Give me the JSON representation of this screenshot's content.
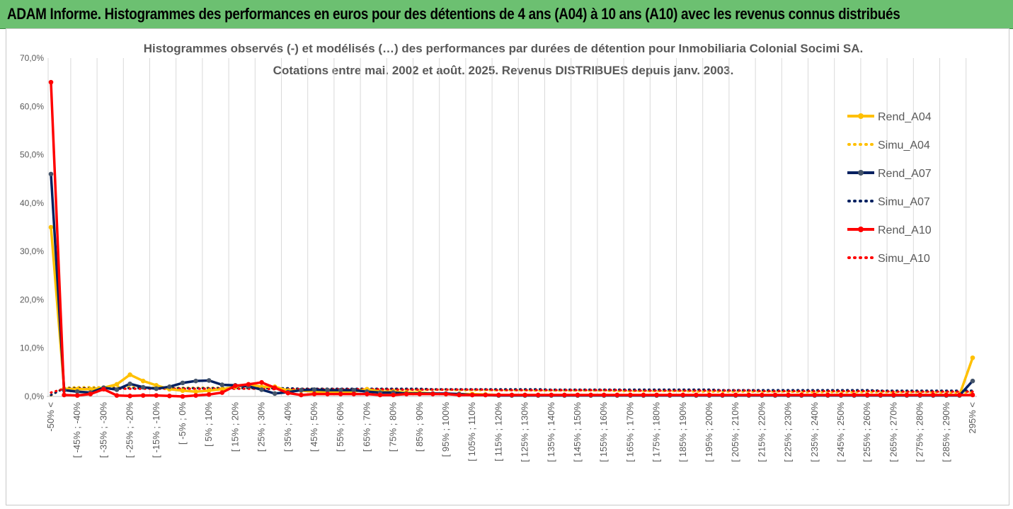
{
  "banner": {
    "title": "ADAM Informe. Histogrammes des performances en euros pour des détentions de 4 ans (A04) à 10 ans (A10) avec les revenus connus distribués"
  },
  "colors": {
    "banner_bg": "#6cc071",
    "a04": "#ffc000",
    "a07": "#002060",
    "a10": "#ff0000",
    "a07_marker": "#44546a",
    "grid": "#d9d9d9",
    "text": "#595959"
  },
  "chart_data": {
    "type": "line",
    "title": "Histogrammes observés (-) et modélisés (…) des performances par durées de détention pour Inmobiliaria Colonial Socimi SA.",
    "subtitle": "Cotations entre mai. 2002 et août. 2025. Revenus DISTRIBUES depuis janv. 2003.",
    "xlabel": "",
    "ylabel": "",
    "ylim": [
      0,
      70
    ],
    "yticks": [
      "0,0%",
      "10,0%",
      "20,0%",
      "30,0%",
      "40,0%",
      "50,0%",
      "60,0%",
      "70,0%"
    ],
    "grid": "vertical",
    "legend_position": "right",
    "categories": [
      "-50% <",
      "[ -50% ; -45%",
      "[ -45% ; -40%",
      "[ -40% ; -35%",
      "[ -35% ; -30%",
      "[ -30% ; -25%",
      "[ -25% ; -20%",
      "[ -20% ; -15%",
      "[ -15% ; -10%",
      "[ -10% ; -5%",
      "[ -5% ; 0%",
      "[ 0% ; 5%",
      "[ 5% ; 10%",
      "[ 10% ; 15%",
      "[ 15% ; 20%",
      "[ 20% ; 25%",
      "[ 25% ; 30%",
      "[ 30% ; 35%",
      "[ 35% ; 40%",
      "[ 40% ; 45%",
      "[ 45% ; 50%",
      "[ 50% ; 55%",
      "[ 55% ; 60%",
      "[ 60% ; 65%",
      "[ 65% ; 70%",
      "[ 70% ; 75%",
      "[ 75% ; 80%",
      "[ 80% ; 85%",
      "[ 85% ; 90%",
      "[ 90% ; 95%",
      "[ 95% ; 100%",
      "[ 100% ; 105%",
      "[ 105% ; 110%",
      "[ 110% ; 115%",
      "[ 115% ; 120%",
      "[ 120% ; 125%",
      "[ 125% ; 130%",
      "[ 130% ; 135%",
      "[ 135% ; 140%",
      "[ 140% ; 145%",
      "[ 145% ; 150%",
      "[ 150% ; 155%",
      "[ 155% ; 160%",
      "[ 160% ; 165%",
      "[ 165% ; 170%",
      "[ 170% ; 175%",
      "[ 175% ; 180%",
      "[ 180% ; 185%",
      "[ 185% ; 190%",
      "[ 190% ; 195%",
      "[ 195% ; 200%",
      "[ 200% ; 205%",
      "[ 205% ; 210%",
      "[ 210% ; 215%",
      "[ 215% ; 220%",
      "[ 220% ; 225%",
      "[ 225% ; 230%",
      "[ 230% ; 235%",
      "[ 235% ; 240%",
      "[ 240% ; 245%",
      "[ 245% ; 250%",
      "[ 250% ; 255%",
      "[ 255% ; 260%",
      "[ 260% ; 265%",
      "[ 265% ; 270%",
      "[ 270% ; 275%",
      "[ 275% ; 280%",
      "[ 280% ; 285%",
      "[ 285% ; 290%",
      "[ 290% ; 295%",
      "295% <"
    ],
    "series": [
      {
        "name": "Rend_A04",
        "style": "solid",
        "color": "#ffc000",
        "values": [
          35,
          1.6,
          1.5,
          1.5,
          1.8,
          2.5,
          4.5,
          3.2,
          2.3,
          1.5,
          1.2,
          1.0,
          1.2,
          1.5,
          2.0,
          2.5,
          2.0,
          2.0,
          1.2,
          1.2,
          1.0,
          1.0,
          1.0,
          1.0,
          1.5,
          1.0,
          1.0,
          0.8,
          0.8,
          0.6,
          0.5,
          0.5,
          0.5,
          0.4,
          0.3,
          0.3,
          0.3,
          0.3,
          0.3,
          0.3,
          0.3,
          0.3,
          0.3,
          0.3,
          0.3,
          0.3,
          0.3,
          0.3,
          0.3,
          0.3,
          0.3,
          0.3,
          0.3,
          0.3,
          0.3,
          0.3,
          0.3,
          0.3,
          0.3,
          0.3,
          0.3,
          0.3,
          0.3,
          0.3,
          0.3,
          0.3,
          0.3,
          0.3,
          0.3,
          0.3,
          8.0
        ]
      },
      {
        "name": "Simu_A04",
        "style": "dotted",
        "color": "#ffc000",
        "values": [
          0.2,
          1.8,
          1.9,
          1.9,
          1.9,
          1.9,
          1.9,
          1.9,
          1.8,
          1.8,
          1.8,
          1.8,
          1.8,
          1.8,
          1.7,
          1.7,
          1.7,
          1.7,
          1.6,
          1.6,
          1.6,
          1.6,
          1.5,
          1.5,
          1.5,
          1.5,
          1.5,
          1.4,
          1.4,
          1.4,
          1.4,
          1.3,
          1.3,
          1.3,
          1.3,
          1.3,
          1.3,
          1.2,
          1.2,
          1.2,
          1.2,
          1.2,
          1.2,
          1.1,
          1.1,
          1.1,
          1.1,
          1.1,
          1.1,
          1.0,
          1.0,
          1.0,
          1.0,
          1.0,
          1.0,
          1.0,
          1.0,
          0.9,
          0.9,
          0.9,
          0.9,
          0.9,
          0.9,
          0.9,
          0.9,
          0.9,
          0.9,
          0.9,
          0.8,
          0.8,
          0.8
        ]
      },
      {
        "name": "Rend_A07",
        "style": "solid",
        "color": "#002060",
        "values": [
          46,
          1.3,
          1.0,
          0.8,
          1.8,
          1.4,
          2.6,
          1.9,
          1.6,
          2.0,
          2.8,
          3.2,
          3.3,
          2.4,
          2.3,
          2.1,
          1.4,
          0.6,
          0.9,
          1.3,
          1.4,
          1.3,
          1.3,
          1.3,
          1.0,
          0.8,
          0.8,
          0.6,
          0.6,
          0.6,
          0.6,
          0.5,
          0.3,
          0.3,
          0.2,
          0.2,
          0.2,
          0.2,
          0.2,
          0.2,
          0.2,
          0.2,
          0.2,
          0.2,
          0.2,
          0.2,
          0.2,
          0.2,
          0.2,
          0.2,
          0.2,
          0.2,
          0.2,
          0.2,
          0.2,
          0.2,
          0.2,
          0.2,
          0.2,
          0.2,
          0.2,
          0.2,
          0.2,
          0.2,
          0.2,
          0.2,
          0.2,
          0.2,
          0.2,
          0.2,
          3.2
        ]
      },
      {
        "name": "Simu_A07",
        "style": "dotted",
        "color": "#002060",
        "values": [
          0.3,
          1.7,
          1.7,
          1.7,
          1.7,
          1.7,
          1.7,
          1.7,
          1.7,
          1.7,
          1.7,
          1.7,
          1.7,
          1.7,
          1.7,
          1.7,
          1.7,
          1.7,
          1.7,
          1.6,
          1.6,
          1.6,
          1.6,
          1.6,
          1.6,
          1.6,
          1.6,
          1.6,
          1.6,
          1.5,
          1.5,
          1.5,
          1.5,
          1.5,
          1.5,
          1.5,
          1.5,
          1.5,
          1.4,
          1.4,
          1.4,
          1.4,
          1.4,
          1.4,
          1.4,
          1.4,
          1.4,
          1.4,
          1.4,
          1.4,
          1.4,
          1.3,
          1.3,
          1.3,
          1.3,
          1.3,
          1.3,
          1.3,
          1.3,
          1.3,
          1.3,
          1.3,
          1.3,
          1.2,
          1.2,
          1.2,
          1.2,
          1.2,
          1.2,
          1.2,
          1.2
        ]
      },
      {
        "name": "Rend_A10",
        "style": "solid",
        "color": "#ff0000",
        "values": [
          65,
          0.3,
          0.2,
          0.5,
          1.5,
          0.2,
          0.1,
          0.2,
          0.2,
          0.1,
          0.0,
          0.2,
          0.4,
          0.8,
          2.2,
          2.5,
          2.9,
          1.8,
          0.7,
          0.3,
          0.5,
          0.5,
          0.5,
          0.5,
          0.5,
          0.3,
          0.3,
          0.5,
          0.5,
          0.5,
          0.5,
          0.3,
          0.3,
          0.3,
          0.3,
          0.3,
          0.3,
          0.3,
          0.3,
          0.3,
          0.3,
          0.3,
          0.3,
          0.3,
          0.3,
          0.3,
          0.3,
          0.3,
          0.3,
          0.3,
          0.3,
          0.3,
          0.3,
          0.3,
          0.3,
          0.3,
          0.3,
          0.3,
          0.3,
          0.3,
          0.3,
          0.3,
          0.3,
          0.3,
          0.3,
          0.3,
          0.3,
          0.3,
          0.3,
          0.3,
          0.3
        ]
      },
      {
        "name": "Simu_A10",
        "style": "dotted",
        "color": "#ff0000",
        "values": [
          0.8,
          1.6,
          1.6,
          1.6,
          1.6,
          1.6,
          1.6,
          1.6,
          1.6,
          1.6,
          1.6,
          1.6,
          1.6,
          1.6,
          1.6,
          1.6,
          1.6,
          1.5,
          1.5,
          1.5,
          1.5,
          1.5,
          1.5,
          1.5,
          1.5,
          1.5,
          1.4,
          1.4,
          1.4,
          1.4,
          1.4,
          1.4,
          1.4,
          1.4,
          1.3,
          1.3,
          1.3,
          1.3,
          1.3,
          1.3,
          1.3,
          1.3,
          1.3,
          1.3,
          1.2,
          1.2,
          1.2,
          1.2,
          1.2,
          1.2,
          1.2,
          1.2,
          1.2,
          1.2,
          1.1,
          1.1,
          1.1,
          1.1,
          1.1,
          1.1,
          1.1,
          1.1,
          1.1,
          1.1,
          1.0,
          1.0,
          1.0,
          1.0,
          1.0,
          1.0,
          1.0
        ]
      }
    ]
  }
}
